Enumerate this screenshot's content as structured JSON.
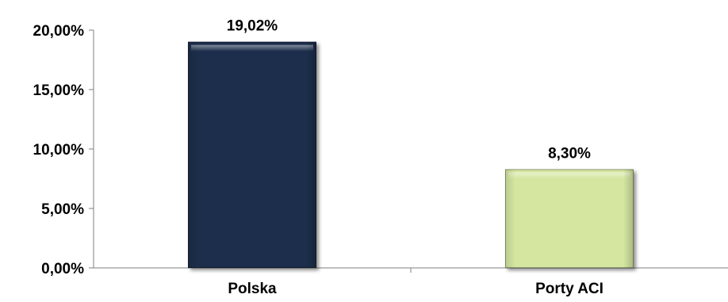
{
  "chart_data": {
    "type": "bar",
    "title": "",
    "categories": [
      "Polska",
      "Porty ACI"
    ],
    "values": [
      19.02,
      8.3
    ],
    "data_labels": [
      "19,02%",
      "8,30%"
    ],
    "bar_colors": [
      "#1b2d4b",
      "#d5e6a1"
    ],
    "ylim": [
      0,
      20
    ],
    "yticks": [
      0,
      5,
      10,
      15,
      20
    ],
    "ytick_labels": [
      "0,00%",
      "5,00%",
      "10,00%",
      "15,00%",
      "20,00%"
    ],
    "xlabel": "",
    "ylabel": "",
    "grid": false,
    "legend": "none"
  }
}
